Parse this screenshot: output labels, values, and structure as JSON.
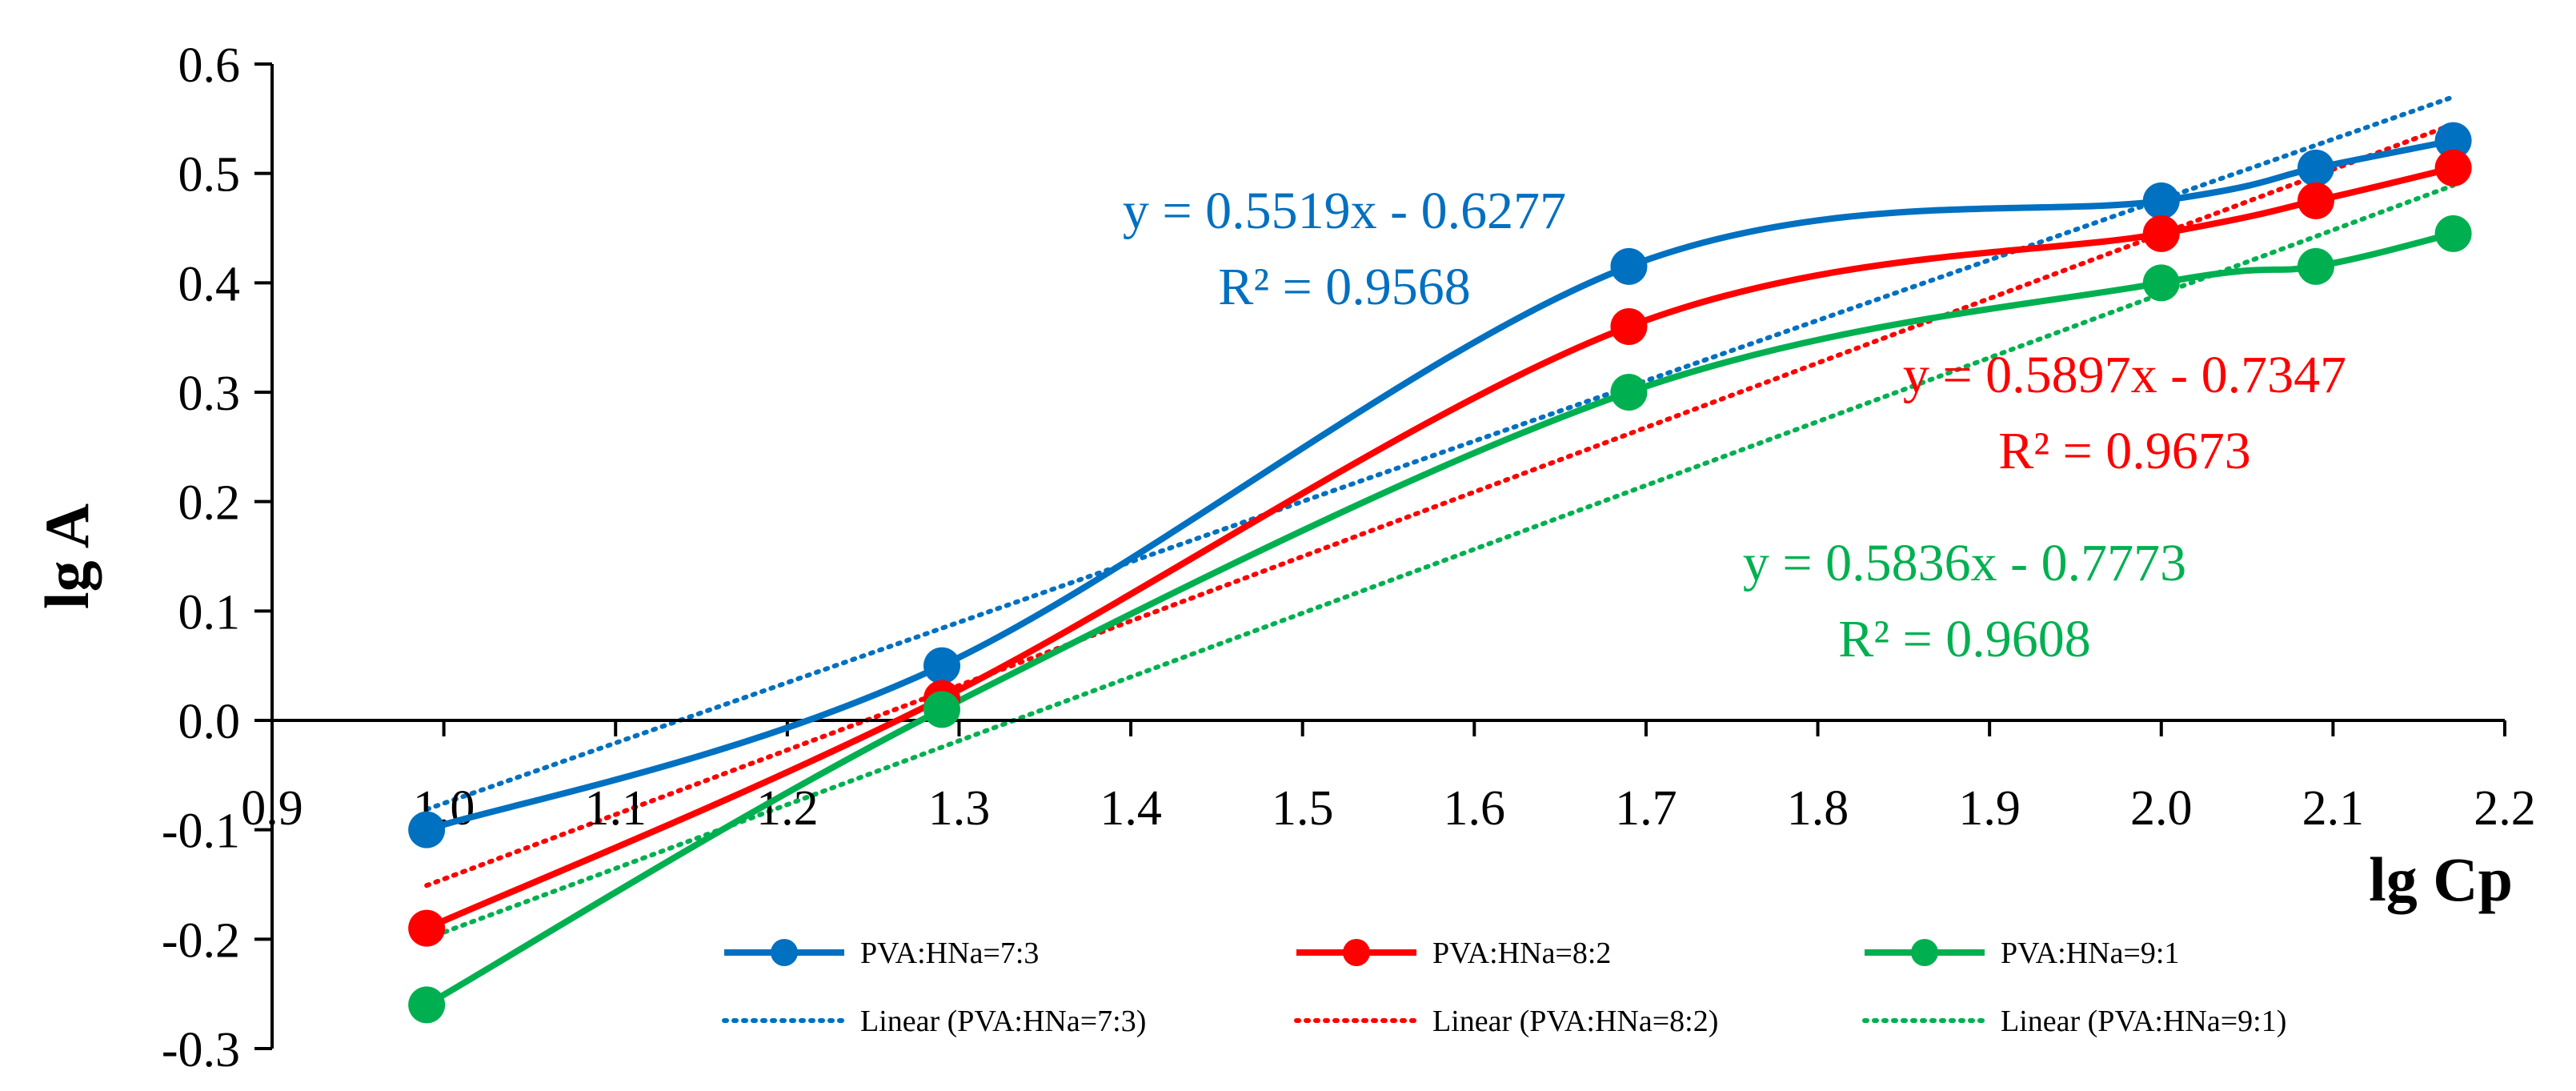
{
  "chart_data": {
    "type": "line",
    "title": "",
    "xlabel": "lg Cp",
    "ylabel": "lg A",
    "xlim": [
      0.9,
      2.2
    ],
    "ylim": [
      -0.3,
      0.6
    ],
    "x_ticks": [
      "0.9",
      "1.0",
      "1.1",
      "1.2",
      "1.3",
      "1.4",
      "1.5",
      "1.6",
      "1.7",
      "1.8",
      "1.9",
      "2.0",
      "2.1",
      "2.2"
    ],
    "y_ticks": [
      "-0.3",
      "-0.2",
      "-0.1",
      "0.0",
      "0.1",
      "0.2",
      "0.3",
      "0.4",
      "0.5",
      "0.6"
    ],
    "grid": false,
    "legend_position": "bottom",
    "series": [
      {
        "name": "PVA:HNa=7:3",
        "color": "#0070C0",
        "x": [
          0.99,
          1.29,
          1.69,
          2.0,
          2.09,
          2.17
        ],
        "y": [
          -0.1,
          0.05,
          0.415,
          0.475,
          0.505,
          0.53
        ],
        "trend_name": "Linear (PVA:HNa=7:3)",
        "slope": 0.5519,
        "intercept": -0.6277,
        "equation": "y = 0.5519x - 0.6277",
        "r2": "R² = 0.9568"
      },
      {
        "name": "PVA:HNa=8:2",
        "color": "#FF0000",
        "x": [
          0.99,
          1.29,
          1.69,
          2.0,
          2.09,
          2.17
        ],
        "y": [
          -0.19,
          0.02,
          0.36,
          0.445,
          0.475,
          0.505
        ],
        "trend_name": "Linear (PVA:HNa=8:2)",
        "slope": 0.5897,
        "intercept": -0.7347,
        "equation": "y = 0.5897x - 0.7347",
        "r2": "R² = 0.9673"
      },
      {
        "name": "PVA:HNa=9:1",
        "color": "#00B050",
        "x": [
          0.99,
          1.29,
          1.69,
          2.0,
          2.09,
          2.17
        ],
        "y": [
          -0.26,
          0.01,
          0.3,
          0.4,
          0.415,
          0.445
        ],
        "trend_name": "Linear (PVA:HNa=9:1)",
        "slope": 0.5836,
        "intercept": -0.7773,
        "equation": "y = 0.5836x - 0.7773",
        "r2": "R² = 0.9608"
      }
    ]
  }
}
